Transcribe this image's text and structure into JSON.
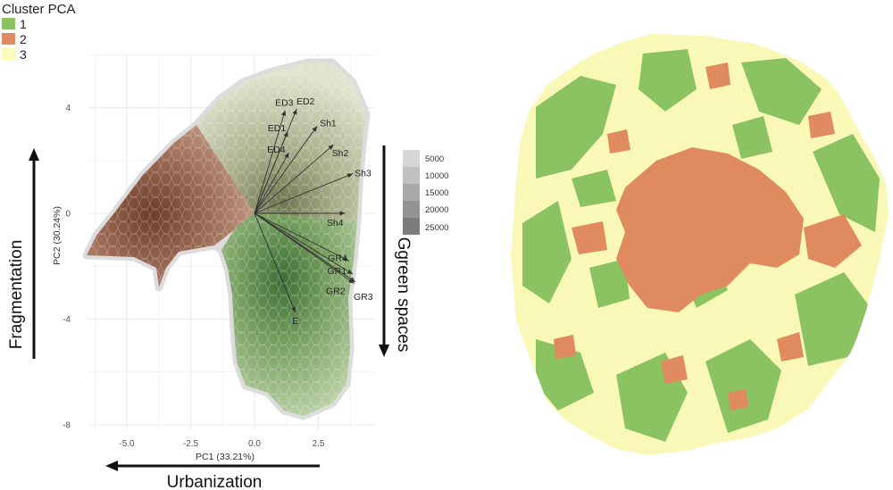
{
  "legend": {
    "title": "Cluster PCA",
    "items": [
      {
        "label": "1",
        "color": "#8bc262"
      },
      {
        "label": "2",
        "color": "#e08a5f"
      },
      {
        "label": "3",
        "color": "#fbfbba"
      }
    ]
  },
  "count_legend": {
    "labels": [
      "5000",
      "10000",
      "15000",
      "20000",
      "25000"
    ],
    "colors": [
      "#d6d6d6",
      "#c0c0c0",
      "#a9a9a9",
      "#939393",
      "#7c7c7c"
    ]
  },
  "annotations": {
    "fragmentation": "Fragmentation",
    "urbanization": "Urbanization",
    "green_spaces": "Ggreen spaces"
  },
  "chart_data": {
    "type": "scatter",
    "xlabel": "PC1 (33.21%)",
    "ylabel": "PC2 (30.24%)",
    "xlim": [
      -6.5,
      4.7
    ],
    "ylim": [
      -8.2,
      6.0
    ],
    "x_ticks": [
      -5.0,
      -2.5,
      0.0,
      2.5
    ],
    "y_ticks": [
      4,
      0,
      -4,
      -8
    ],
    "x_tick_labels": [
      "-5.0",
      "-2.5",
      "0.0",
      "2.5"
    ],
    "y_tick_labels": [
      "4",
      "0",
      "-4",
      "-8"
    ],
    "grid": true,
    "loadings": [
      {
        "name": "ED3",
        "x": 1.2,
        "y": 3.9
      },
      {
        "name": "ED2",
        "x": 1.65,
        "y": 3.95
      },
      {
        "name": "ED1",
        "x": 1.3,
        "y": 3.1
      },
      {
        "name": "ED4",
        "x": 1.35,
        "y": 2.3
      },
      {
        "name": "Sh1",
        "x": 2.45,
        "y": 3.3
      },
      {
        "name": "Sh2",
        "x": 3.1,
        "y": 2.6
      },
      {
        "name": "Sh3",
        "x": 3.85,
        "y": 1.5
      },
      {
        "name": "Sh4",
        "x": 3.55,
        "y": 0.0
      },
      {
        "name": "GR4",
        "x": 3.7,
        "y": -1.8
      },
      {
        "name": "GR1",
        "x": 3.85,
        "y": -2.3
      },
      {
        "name": "GR2",
        "x": 3.9,
        "y": -2.65
      },
      {
        "name": "GR3",
        "x": 3.95,
        "y": -2.6
      },
      {
        "name": "E",
        "x": 1.6,
        "y": -3.75
      }
    ]
  }
}
